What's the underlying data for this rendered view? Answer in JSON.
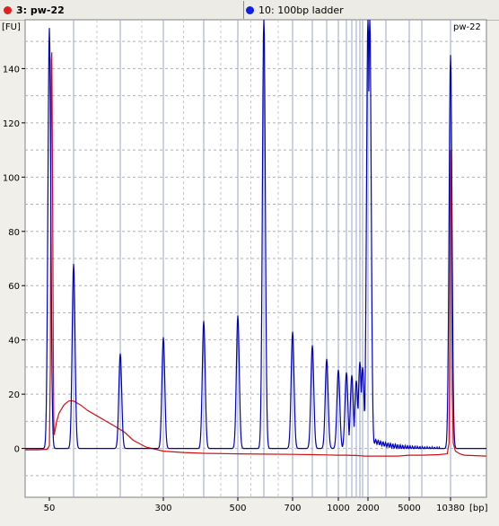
{
  "tabs": [
    {
      "label": "3: pw-22",
      "color": "#e02020",
      "selected": true
    },
    {
      "label": "10: 100bp ladder",
      "color": "#1020e0",
      "selected": false
    }
  ],
  "chart_data": {
    "type": "line",
    "title": "pw-22",
    "ylabel": "[FU]",
    "xlabel": "[bp]",
    "yticks": [
      0,
      20,
      40,
      60,
      80,
      100,
      120,
      140
    ],
    "ylim": [
      -18,
      158
    ],
    "xticks": [
      "50",
      "300",
      "500",
      "700",
      "1000",
      "2000",
      "5000",
      "10380"
    ],
    "xscale": "migration (non-linear)",
    "grid": true,
    "series": [
      {
        "name": "3: pw-22",
        "color": "#d01010",
        "x": [
          28,
          40,
          48,
          50,
          52,
          53,
          54,
          55,
          56,
          57,
          58,
          59,
          60,
          62,
          65,
          70,
          80,
          90,
          100,
          115,
          130,
          150,
          170,
          190,
          210,
          230,
          260,
          300,
          350,
          400,
          500,
          600,
          700,
          800,
          900,
          1000,
          1100,
          1200,
          1300,
          1400,
          1500,
          1600,
          1800,
          2000,
          2500,
          3000,
          4000,
          5000,
          7000,
          9000,
          10000,
          10200,
          10300,
          10350,
          10380,
          10420,
          10460,
          10500,
          10600,
          10800,
          11000,
          12000
        ],
        "y": [
          -0.5,
          -0.5,
          -0.3,
          1,
          30,
          95,
          143,
          146,
          120,
          80,
          40,
          10,
          5,
          7,
          10,
          13,
          16,
          17.5,
          17.5,
          16,
          14,
          12,
          10,
          8,
          6,
          3,
          0.5,
          -1,
          -1.5,
          -1.8,
          -2,
          -2.1,
          -2.2,
          -2.3,
          -2.4,
          -2.5,
          -2.5,
          -2.6,
          -2.6,
          -2.7,
          -2.7,
          -2.8,
          -2.8,
          -2.8,
          -2.8,
          -2.8,
          -2.8,
          -2.5,
          -2.5,
          -2.3,
          -2,
          2,
          40,
          107,
          110,
          80,
          20,
          2,
          -1,
          -2,
          -2.5,
          -2.8
        ]
      },
      {
        "name": "10: 100bp ladder",
        "color": "#0000c0",
        "peaks_bp": [
          50,
          100,
          200,
          300,
          400,
          500,
          600,
          700,
          800,
          900,
          1000,
          1100,
          1200,
          1300,
          1400,
          1500,
          2000,
          2100,
          10380
        ],
        "peaks_fu": [
          155,
          68,
          35,
          41,
          47,
          49,
          160,
          43,
          38,
          33,
          29,
          28,
          27,
          25,
          32,
          30,
          160,
          160,
          145
        ],
        "baseline_fu": -0.5
      }
    ]
  }
}
